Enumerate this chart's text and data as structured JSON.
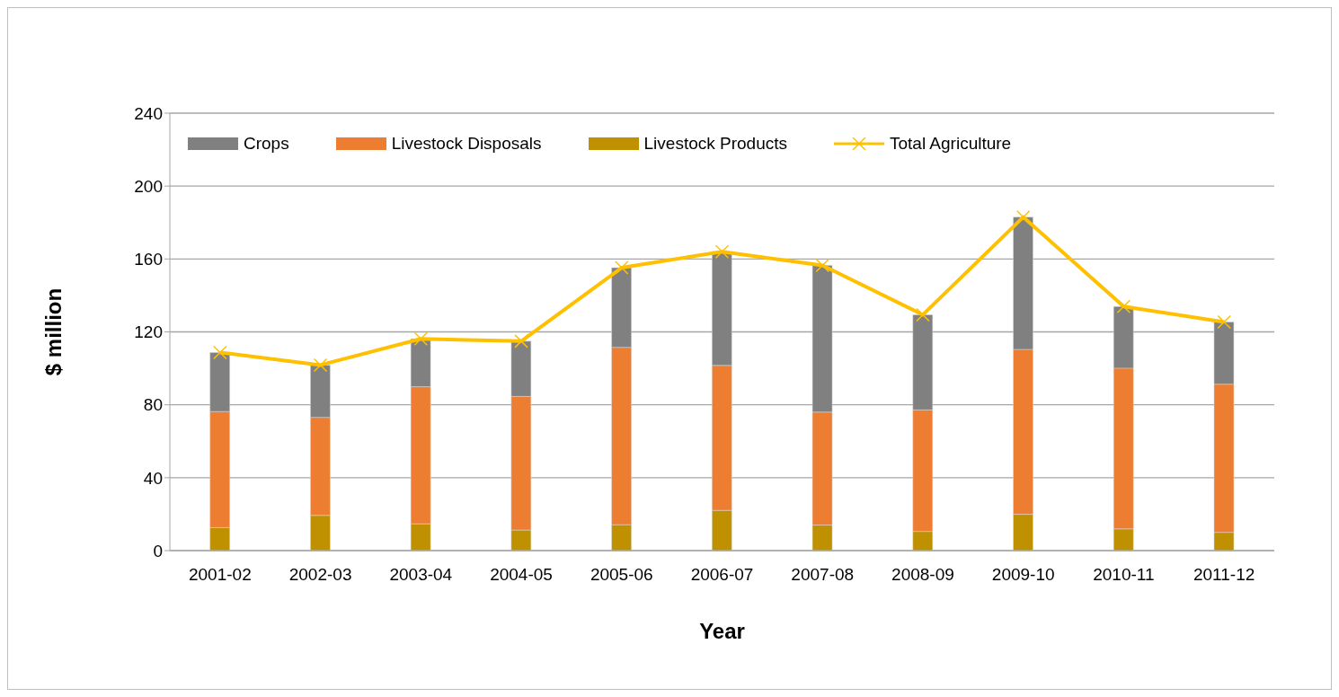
{
  "chart_data": {
    "type": "bar",
    "stacked": true,
    "xlabel": "Year",
    "ylabel": "$ million",
    "categories": [
      "2001-02",
      "2002-03",
      "2003-04",
      "2004-05",
      "2005-06",
      "2006-07",
      "2007-08",
      "2008-09",
      "2009-10",
      "2010-11",
      "2011-12"
    ],
    "series": [
      {
        "name": "Livestock Products",
        "color": "#bf9000",
        "values": [
          12.6,
          19.3,
          14.7,
          11.3,
          14.2,
          22.1,
          14.0,
          10.5,
          19.9,
          11.9,
          10.0
        ]
      },
      {
        "name": "Livestock Disposals",
        "color": "#ed7d31",
        "values": [
          63.7,
          53.8,
          75.2,
          73.3,
          97.3,
          79.5,
          62.0,
          66.7,
          90.5,
          88.2,
          81.3
        ]
      },
      {
        "name": "Crops",
        "color": "#808080",
        "values": [
          32.4,
          28.7,
          26.3,
          30.3,
          43.7,
          62.4,
          80.5,
          52.2,
          72.6,
          33.8,
          34.1
        ]
      },
      {
        "name": "Total Agriculture",
        "type": "line",
        "color": "#ffc000",
        "marker": "cross",
        "values": [
          108.7,
          101.8,
          116.2,
          114.9,
          155.2,
          164.0,
          156.5,
          129.4,
          183.0,
          133.9,
          125.4
        ]
      }
    ],
    "ylim": [
      0,
      240
    ],
    "yticks": [
      0,
      40,
      80,
      120,
      160,
      200,
      240
    ],
    "grid": "y",
    "legend": "top"
  }
}
